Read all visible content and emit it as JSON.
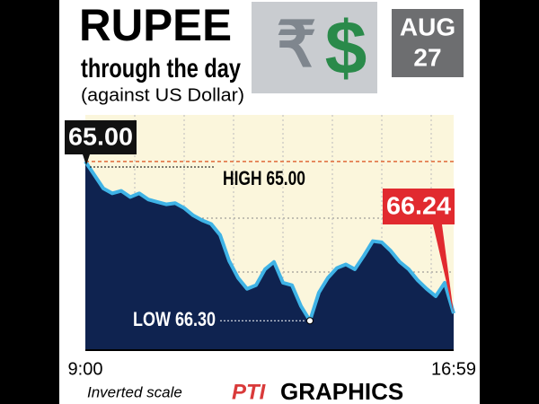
{
  "chart_data": {
    "type": "area",
    "title": "RUPEE",
    "subtitle": "through the day",
    "subtitle2": "(against US Dollar)",
    "date": [
      "AUG",
      "27"
    ],
    "image_symbols": [
      "₹",
      "$"
    ],
    "categories": [
      "9:00",
      null,
      null,
      null,
      null,
      null,
      null,
      null,
      null,
      null,
      null,
      null,
      null,
      null,
      null,
      null,
      null,
      null,
      null,
      null,
      null,
      null,
      null,
      null,
      null,
      null,
      null,
      null,
      null,
      null,
      null,
      null,
      null,
      null,
      null,
      null,
      null,
      null,
      null,
      null,
      null,
      "16:59"
    ],
    "values": [
      65.0,
      65.11,
      65.22,
      65.26,
      65.24,
      65.29,
      65.26,
      65.31,
      65.33,
      65.35,
      65.34,
      65.38,
      65.44,
      65.48,
      65.51,
      65.6,
      65.81,
      65.95,
      66.04,
      66.01,
      65.88,
      65.82,
      65.99,
      66.01,
      66.18,
      66.3,
      66.07,
      65.95,
      65.87,
      65.84,
      65.88,
      65.77,
      65.65,
      65.66,
      65.73,
      65.82,
      65.88,
      65.97,
      66.04,
      66.1,
      65.99,
      66.24
    ],
    "line_color": "#3fb3e6",
    "fill_color": "#0f2350",
    "background_color": "#fbf6dc",
    "ylim": [
      64.62,
      66.54
    ],
    "inverted": true,
    "open_label": "65.00",
    "close_label": "66.24",
    "high": {
      "text": "HIGH 65.00",
      "value": 65.0
    },
    "low": {
      "text": "LOW 66.30",
      "value": 66.3
    },
    "note": "Inverted scale",
    "source": [
      "PTI",
      "GRAPHICS"
    ]
  }
}
